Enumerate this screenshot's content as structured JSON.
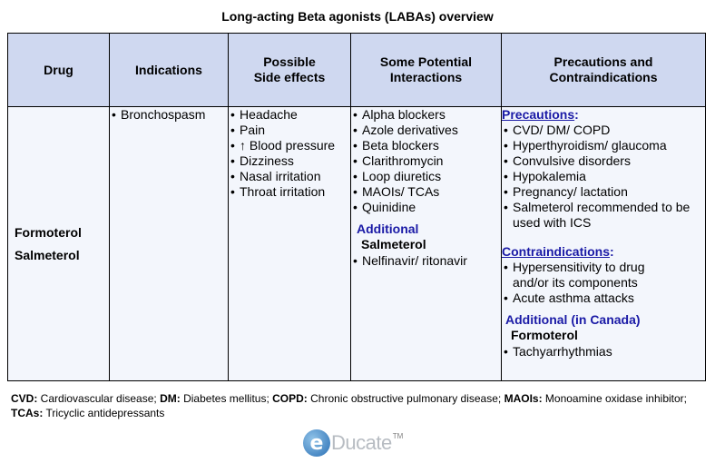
{
  "title": "Long-acting Beta agonists (LABAs) overview",
  "headers": {
    "drug": "Drug",
    "indications": "Indications",
    "side_effects_1": "Possible",
    "side_effects_2": "Side effects",
    "interactions_1": "Some Potential",
    "interactions_2": "Interactions",
    "precautions_1": "Precautions and",
    "precautions_2": "Contraindications"
  },
  "drugs": [
    "Formoterol",
    "Salmeterol"
  ],
  "indications": [
    "Bronchospasm"
  ],
  "side_effects": [
    "Headache",
    "Pain",
    "↑ Blood pressure",
    "Dizziness",
    "Nasal irritation",
    "Throat irritation"
  ],
  "interactions": {
    "items": [
      "Alpha blockers",
      "Azole derivatives",
      "Beta blockers",
      "Clarithromycin",
      "Loop diuretics",
      "MAOIs/ TCAs",
      "Quinidine"
    ],
    "additional_heading": "Additional",
    "additional_drug": "Salmeterol",
    "additional_items": [
      "Nelfinavir/ ritonavir"
    ]
  },
  "precautions": {
    "heading": "Precautions",
    "items": [
      "CVD/ DM/ COPD",
      "Hyperthyroidism/ glaucoma",
      "Convulsive disorders",
      "Hypokalemia",
      "Pregnancy/ lactation",
      "Salmeterol recommended to be used with ICS"
    ],
    "contra_heading": "Contraindications",
    "contra_items": [
      "Hypersensitivity to drug and/or its components",
      "Acute asthma attacks"
    ],
    "additional_heading": "Additional (in Canada)",
    "additional_drug": "Formoterol",
    "additional_items": [
      "Tachyarrhythmias"
    ]
  },
  "footnote": {
    "cvd_abbr": "CVD:",
    "cvd": " Cardiovascular disease; ",
    "dm_abbr": "DM:",
    "dm": " Diabetes mellitus; ",
    "copd_abbr": "COPD:",
    "copd": " Chronic obstructive pulmonary disease; ",
    "maoi_abbr": "MAOIs:",
    "maoi": " Monoamine oxidase inhibitor; ",
    "tca_abbr": "TCAs:",
    "tca": " Tricyclic antidepressants"
  },
  "logo": {
    "letter": "e",
    "word": "Ducate",
    "tm": "TM"
  },
  "colors": {
    "header_bg": "#cfd8f0",
    "cell_bg": "#f3f6fc",
    "accent_blue": "#1a1aa6"
  }
}
